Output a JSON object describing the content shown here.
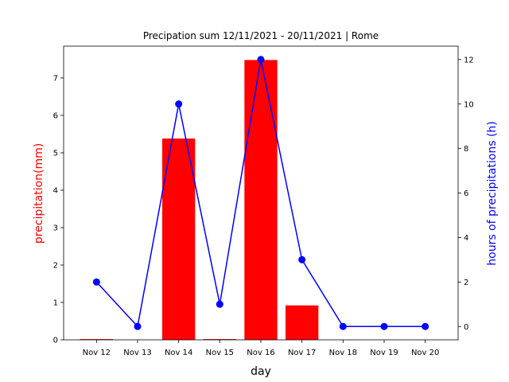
{
  "chart_data": {
    "type": "bar",
    "title": "Precipation sum 12/11/2021 - 20/11/2021 | Rome",
    "xlabel": "day",
    "categories": [
      "Nov 12",
      "Nov 13",
      "Nov 14",
      "Nov 15",
      "Nov 16",
      "Nov 17",
      "Nov 18",
      "Nov 19",
      "Nov 20"
    ],
    "grid": false,
    "legend": "none",
    "left_axis": {
      "label": "precipitation(mm)",
      "color": "#ff0000",
      "ylim": [
        0,
        7.85
      ],
      "ticks": [
        "0",
        "1",
        "2",
        "3",
        "4",
        "5",
        "6",
        "7"
      ]
    },
    "right_axis": {
      "label": "hours of precipitations (h)",
      "color": "#0000ff",
      "ylim": [
        -0.6,
        12.6
      ],
      "ticks": [
        "0",
        "2",
        "4",
        "6",
        "8",
        "10",
        "12"
      ]
    },
    "series": [
      {
        "type": "bar",
        "axis": "left",
        "color": "#ff0000",
        "values": [
          0.02,
          0,
          5.38,
          0.02,
          7.48,
          0.92,
          0,
          0,
          0
        ]
      },
      {
        "type": "line",
        "axis": "right",
        "color": "#0000ff",
        "marker": "circle",
        "values": [
          2,
          0,
          10,
          1,
          12,
          3,
          0,
          0,
          0
        ]
      }
    ]
  }
}
